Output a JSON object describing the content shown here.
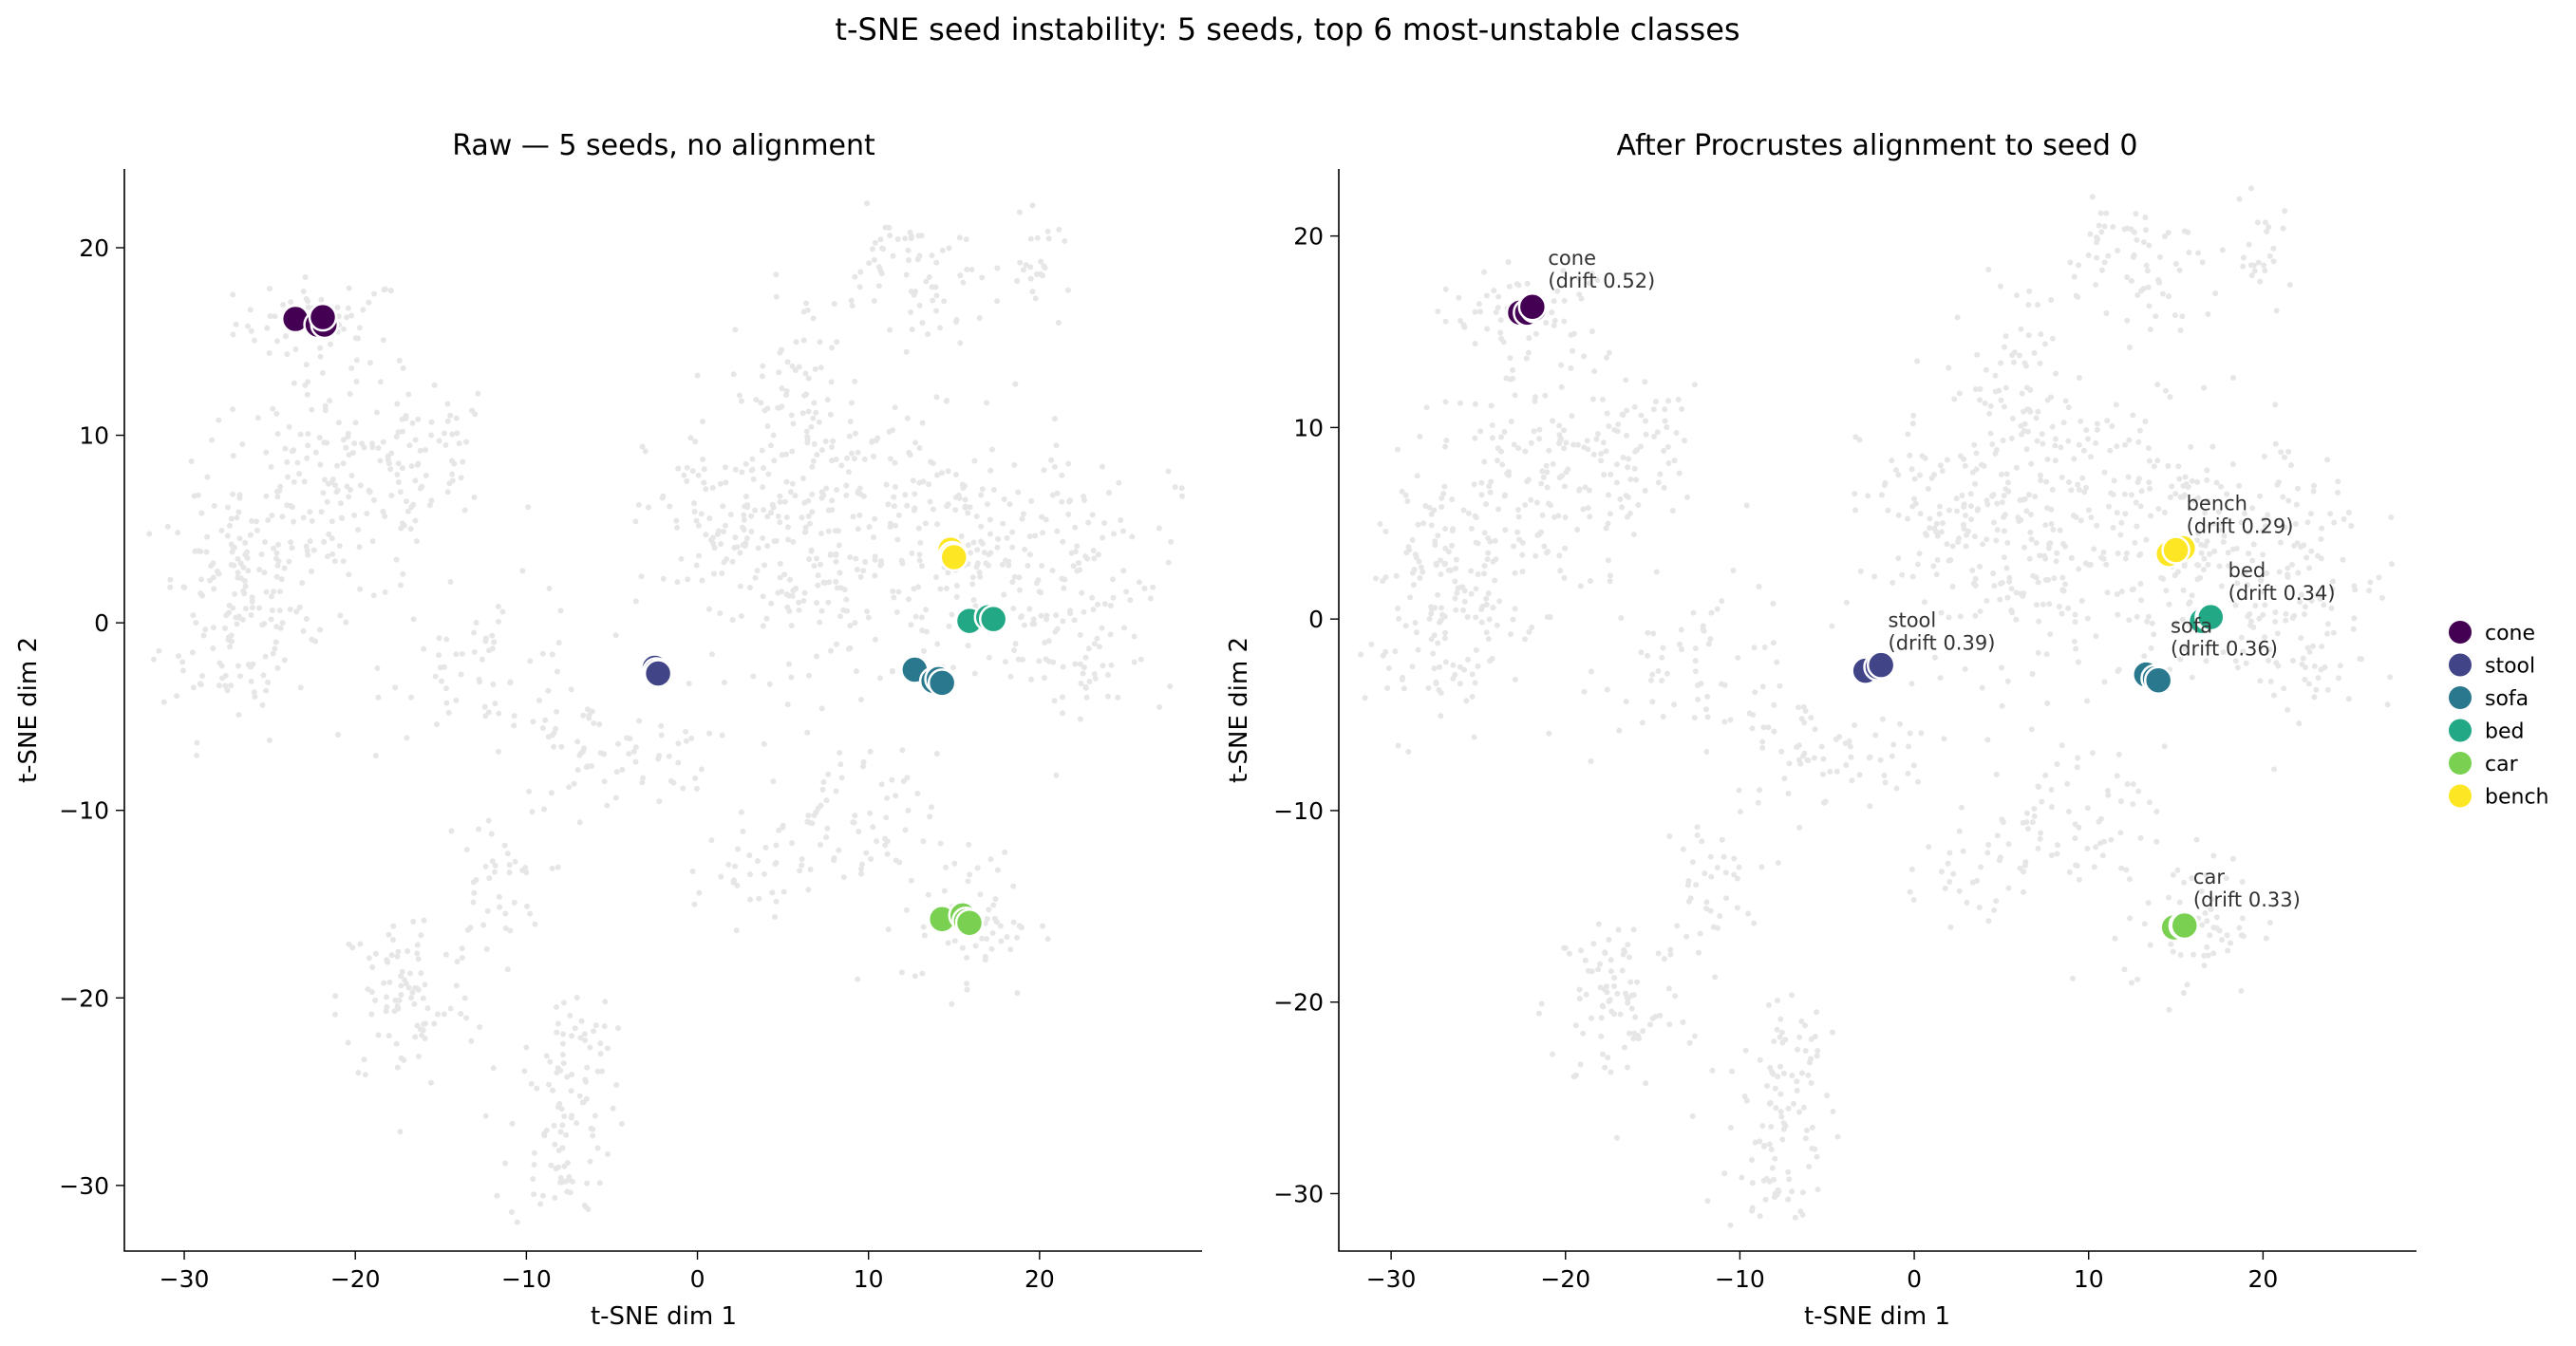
{
  "figure": {
    "suptitle": "t-SNE seed instability: 5 seeds, top 6 most-unstable classes"
  },
  "chart_data": [
    {
      "type": "scatter",
      "title": "Raw — 5 seeds, no alignment",
      "xlabel": "t-SNE dim 1",
      "ylabel": "t-SNE dim 2",
      "xlim": [
        -33.5,
        29.5
      ],
      "ylim": [
        -33.5,
        24.2
      ],
      "xticks": [
        -30,
        -20,
        -10,
        0,
        10,
        20
      ],
      "yticks": [
        -30,
        -20,
        -10,
        0,
        10,
        20
      ],
      "xtick_labels": [
        "−30",
        "−20",
        "−10",
        "0",
        "10",
        "20"
      ],
      "ytick_labels": [
        "−30",
        "−20",
        "−10",
        "0",
        "10",
        "20"
      ],
      "grid": false,
      "background_points": "light gray cloud of all class embeddings",
      "series": [
        {
          "name": "cone",
          "color": "#440154",
          "points": [
            [
              -23.5,
              16.2
            ],
            [
              -22.2,
              15.9
            ],
            [
              -21.8,
              15.9
            ],
            [
              -21.9,
              16.3
            ]
          ]
        },
        {
          "name": "stool",
          "color": "#414487",
          "points": [
            [
              -2.5,
              -2.4
            ],
            [
              -2.4,
              -2.6
            ],
            [
              -2.3,
              -2.7
            ]
          ]
        },
        {
          "name": "sofa",
          "color": "#2a788e",
          "points": [
            [
              12.7,
              -2.5
            ],
            [
              13.8,
              -3.1
            ],
            [
              14.1,
              -3.0
            ],
            [
              14.3,
              -3.2
            ]
          ]
        },
        {
          "name": "bed",
          "color": "#22a884",
          "points": [
            [
              15.9,
              0.1
            ],
            [
              17.0,
              0.3
            ],
            [
              17.3,
              0.2
            ]
          ]
        },
        {
          "name": "car",
          "color": "#7ad151",
          "points": [
            [
              14.3,
              -15.8
            ],
            [
              15.5,
              -15.6
            ],
            [
              15.7,
              -15.9
            ],
            [
              15.9,
              -16.0
            ]
          ]
        },
        {
          "name": "bench",
          "color": "#fde725",
          "points": [
            [
              14.8,
              3.9
            ],
            [
              14.9,
              3.6
            ],
            [
              15.0,
              3.5
            ]
          ]
        }
      ]
    },
    {
      "type": "scatter",
      "title": "After Procrustes alignment to seed 0",
      "xlabel": "t-SNE dim 1",
      "ylabel": "t-SNE dim 2",
      "xlim": [
        -33.0,
        28.8
      ],
      "ylim": [
        -33.0,
        23.5
      ],
      "xticks": [
        -30,
        -20,
        -10,
        0,
        10,
        20
      ],
      "yticks": [
        -30,
        -20,
        -10,
        0,
        10,
        20
      ],
      "xtick_labels": [
        "−30",
        "−20",
        "−10",
        "0",
        "10",
        "20"
      ],
      "ytick_labels": [
        "−30",
        "−20",
        "−10",
        "0",
        "10",
        "20"
      ],
      "grid": false,
      "legend_position": "right",
      "background_points": "light gray cloud of all class embeddings",
      "series": [
        {
          "name": "cone",
          "color": "#440154",
          "points": [
            [
              -22.6,
              16.0
            ],
            [
              -22.2,
              16.0
            ],
            [
              -21.8,
              16.2
            ],
            [
              -21.9,
              16.3
            ]
          ],
          "annotation_line1": "cone",
          "annotation_line2": "(drift 0.52)",
          "annotation_anchor": [
            -21.0,
            17.3
          ]
        },
        {
          "name": "stool",
          "color": "#414487",
          "points": [
            [
              -2.8,
              -2.7
            ],
            [
              -2.1,
              -2.5
            ],
            [
              -1.9,
              -2.4
            ]
          ],
          "annotation_line1": "stool",
          "annotation_line2": "(drift 0.39)",
          "annotation_anchor": [
            -1.5,
            -1.6
          ]
        },
        {
          "name": "sofa",
          "color": "#2a788e",
          "points": [
            [
              13.3,
              -2.9
            ],
            [
              13.8,
              -3.1
            ],
            [
              14.0,
              -3.2
            ]
          ],
          "annotation_line1": "sofa",
          "annotation_line2": "(drift 0.36)",
          "annotation_anchor": [
            14.7,
            -1.9
          ]
        },
        {
          "name": "bed",
          "color": "#22a884",
          "points": [
            [
              16.5,
              -0.1
            ],
            [
              16.9,
              0.1
            ],
            [
              17.0,
              0.1
            ]
          ],
          "annotation_line1": "bed",
          "annotation_line2": "(drift 0.34)",
          "annotation_anchor": [
            18.0,
            1.0
          ]
        },
        {
          "name": "car",
          "color": "#7ad151",
          "points": [
            [
              14.9,
              -16.1
            ],
            [
              15.4,
              -16.0
            ],
            [
              15.5,
              -16.0
            ]
          ],
          "annotation_line1": "car",
          "annotation_line2": "(drift 0.33)",
          "annotation_anchor": [
            16.0,
            -15.0
          ]
        },
        {
          "name": "bench",
          "color": "#fde725",
          "points": [
            [
              14.6,
              3.4
            ],
            [
              15.4,
              3.7
            ],
            [
              15.0,
              3.6
            ]
          ],
          "annotation_line1": "bench",
          "annotation_line2": "(drift 0.29)",
          "annotation_anchor": [
            15.6,
            4.5
          ]
        }
      ]
    }
  ]
}
